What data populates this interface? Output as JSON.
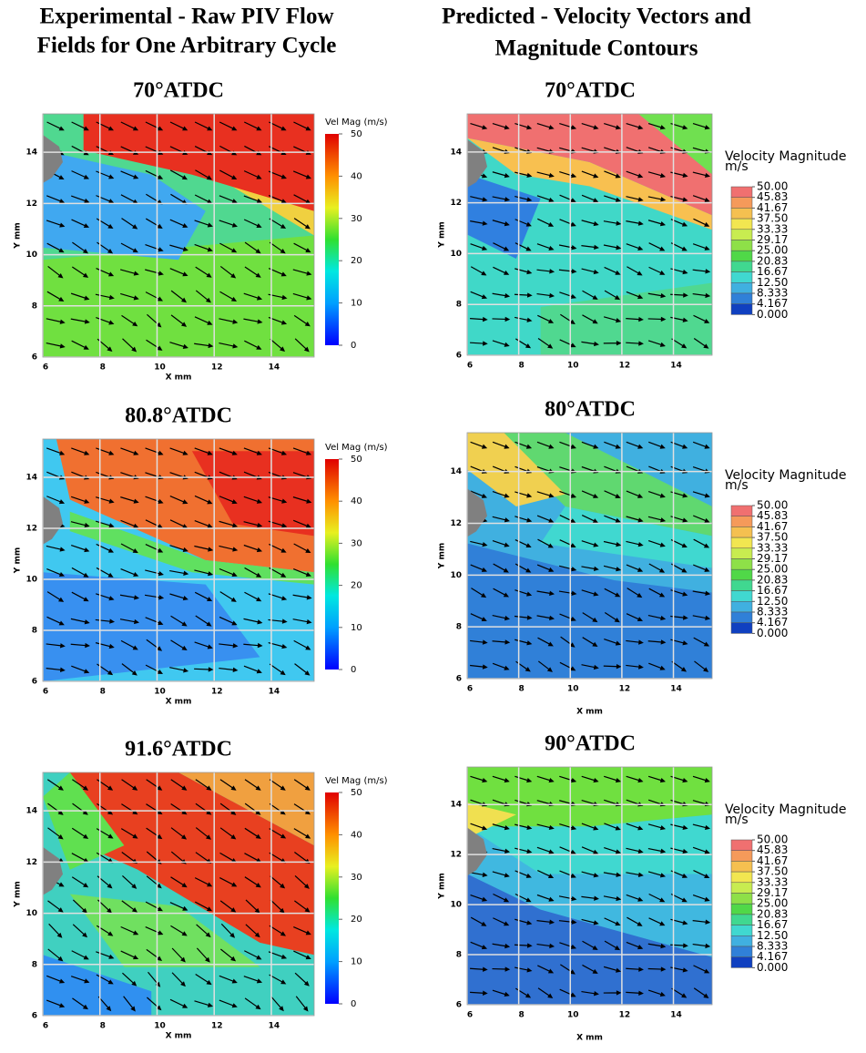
{
  "headers": {
    "left": [
      "Experimental - Raw PIV Flow",
      "Fields for One Arbitrary Cycle"
    ],
    "right": [
      "Predicted - Velocity Vectors and",
      "Magnitude Contours"
    ]
  },
  "chart_data": [
    {
      "type": "contour",
      "title": "70°ATDC",
      "xlabel": "X mm",
      "ylabel": "Y mm",
      "xlim": [
        6,
        15.5
      ],
      "ylim": [
        6,
        15.5
      ],
      "xticks": [
        6,
        8,
        10,
        12,
        14
      ],
      "yticks": [
        6,
        8,
        10,
        12,
        14
      ],
      "colorbar": {
        "label": "Vel Mag (m/s)",
        "lim": [
          0,
          50
        ],
        "ticks": [
          0,
          10,
          20,
          30,
          40,
          50
        ]
      }
    },
    {
      "type": "contour",
      "title": "80.8°ATDC",
      "xlabel": "X mm",
      "ylabel": "Y mm",
      "xlim": [
        6,
        15.5
      ],
      "ylim": [
        6,
        15.5
      ],
      "xticks": [
        6,
        8,
        10,
        12,
        14
      ],
      "yticks": [
        6,
        8,
        10,
        12,
        14
      ],
      "colorbar": {
        "label": "Vel Mag (m/s)",
        "lim": [
          0,
          50
        ],
        "ticks": [
          0,
          10,
          20,
          30,
          40,
          50
        ]
      }
    },
    {
      "type": "contour",
      "title": "91.6°ATDC",
      "xlabel": "X mm",
      "ylabel": "Y mm",
      "xlim": [
        6,
        15.5
      ],
      "ylim": [
        6,
        15.5
      ],
      "xticks": [
        6,
        8,
        10,
        12,
        14
      ],
      "yticks": [
        6,
        8,
        10,
        12,
        14
      ],
      "colorbar": {
        "label": "Vel Mag (m/s)",
        "lim": [
          0,
          50
        ],
        "ticks": [
          0,
          10,
          20,
          30,
          40,
          50
        ]
      }
    },
    {
      "type": "contour",
      "title": "70°ATDC",
      "ylabel": "Y mm",
      "xlim": [
        6,
        15.5
      ],
      "ylim": [
        6,
        15.5
      ],
      "xticks": [
        6,
        8,
        10,
        12,
        14
      ],
      "yticks": [
        6,
        8,
        10,
        12,
        14
      ],
      "legend": {
        "title": "Velocity Magnitude",
        "unit": "m/s",
        "levels": [
          {
            "value": 50,
            "label": "50.00"
          },
          45.83,
          41.67,
          {
            "value": 37.5,
            "label": "37.50"
          },
          33.33,
          29.17,
          {
            "value": 25,
            "label": "25.00"
          },
          20.83,
          16.67,
          {
            "value": 12.5,
            "label": "12.50"
          },
          8.333,
          4.167,
          {
            "value": 0,
            "label": "0.000"
          }
        ]
      }
    },
    {
      "type": "contour",
      "title": "80°ATDC",
      "xlabel": "X mm",
      "ylabel": "Y mm",
      "xlim": [
        6,
        15.5
      ],
      "ylim": [
        6,
        15.5
      ],
      "xticks": [
        6,
        8,
        10,
        12,
        14
      ],
      "yticks": [
        6,
        8,
        10,
        12,
        14
      ],
      "legend": {
        "title": "Velocity Magnitude",
        "unit": "m/s",
        "levels": [
          {
            "value": 50,
            "label": "50.00"
          },
          45.83,
          41.67,
          {
            "value": 37.5,
            "label": "37.50"
          },
          33.33,
          29.17,
          {
            "value": 25,
            "label": "25.00"
          },
          20.83,
          16.67,
          {
            "value": 12.5,
            "label": "12.50"
          },
          8.333,
          4.167,
          {
            "value": 0,
            "label": "0.000"
          }
        ]
      }
    },
    {
      "type": "contour",
      "title": "90°ATDC",
      "xlabel": "X mm",
      "ylabel": "Y mm",
      "xlim": [
        6,
        15.5
      ],
      "ylim": [
        6,
        15.5
      ],
      "xticks": [
        6,
        8,
        10,
        12,
        14
      ],
      "yticks": [
        6,
        8,
        10,
        12,
        14
      ],
      "legend": {
        "title": "Velocity Magnitude",
        "unit": "m/s",
        "levels": [
          {
            "value": 50,
            "label": "50.00"
          },
          45.83,
          41.67,
          {
            "value": 37.5,
            "label": "37.50"
          },
          33.33,
          29.17,
          {
            "value": 25,
            "label": "25.00"
          },
          20.83,
          16.67,
          {
            "value": 12.5,
            "label": "12.50"
          },
          8.333,
          4.167,
          {
            "value": 0,
            "label": "0.000"
          }
        ]
      }
    }
  ]
}
